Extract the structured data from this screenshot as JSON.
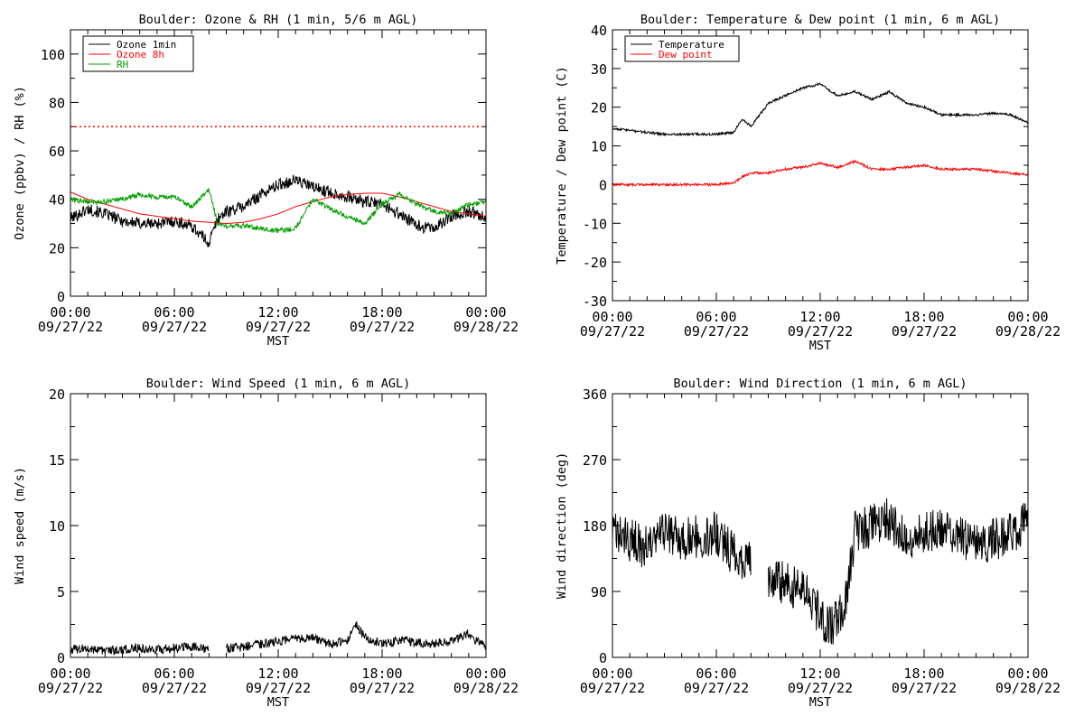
{
  "chart_data": [
    {
      "type": "line",
      "title": "Boulder: Ozone & RH (1 min, 5/6 m AGL)",
      "ylabel": "Ozone (ppbv) / RH (%)",
      "xlabel": "MST",
      "ylim": [
        0,
        110
      ],
      "yticks": [
        0,
        20,
        40,
        60,
        80,
        100
      ],
      "xticks": [
        "00:00",
        "06:00",
        "12:00",
        "18:00",
        "00:00"
      ],
      "xtick_dates": [
        "09/27/22",
        "09/27/22",
        "09/27/22",
        "09/27/22",
        "09/28/22"
      ],
      "xlim_hours": [
        0,
        24
      ],
      "x_hours": [
        0,
        1,
        2,
        3,
        4,
        5,
        6,
        7,
        8,
        8.5,
        9,
        10,
        11,
        12,
        13,
        14,
        15,
        16,
        17,
        18,
        19,
        20,
        21,
        22,
        23,
        24
      ],
      "reference_line": {
        "value": 70,
        "color": "#ff0000",
        "style": "dotted"
      },
      "legend_position": "top-left",
      "series": [
        {
          "name": "Ozone 1min",
          "color": "#000000",
          "jitter": 2.5,
          "values": [
            32,
            36,
            34,
            31,
            30,
            30,
            31,
            29,
            22,
            32,
            35,
            37,
            42,
            46,
            48,
            45,
            43,
            41,
            39,
            38,
            34,
            29,
            28,
            33,
            35,
            33
          ]
        },
        {
          "name": "Ozone 8h",
          "color": "#ff0000",
          "jitter": 0,
          "values": [
            43,
            40,
            38,
            36,
            34,
            33,
            32,
            31,
            30.5,
            30.2,
            30,
            30.5,
            32,
            34,
            37,
            39,
            41,
            42,
            42.5,
            42.5,
            41,
            39,
            37,
            35,
            34,
            33
          ]
        },
        {
          "name": "RH",
          "color": "#00a000",
          "jitter": 1,
          "values": [
            40,
            39,
            39,
            40,
            42,
            41,
            41,
            37,
            44,
            30,
            29,
            29,
            28,
            27,
            28,
            40,
            36,
            33,
            30,
            38,
            42,
            38,
            35,
            34,
            38,
            39
          ]
        }
      ]
    },
    {
      "type": "line",
      "title": "Boulder: Temperature & Dew point (1 min, 6 m AGL)",
      "ylabel": "Temperature / Dew point (C)",
      "xlabel": "MST",
      "ylim": [
        -30,
        40
      ],
      "yticks": [
        -30,
        -20,
        -10,
        0,
        10,
        20,
        30,
        40
      ],
      "xticks": [
        "00:00",
        "06:00",
        "12:00",
        "18:00",
        "00:00"
      ],
      "xtick_dates": [
        "09/27/22",
        "09/27/22",
        "09/27/22",
        "09/27/22",
        "09/28/22"
      ],
      "xlim_hours": [
        0,
        24
      ],
      "x_hours": [
        0,
        1,
        2,
        3,
        4,
        5,
        6,
        7,
        7.5,
        8,
        9,
        10,
        11,
        12,
        13,
        14,
        15,
        16,
        17,
        18,
        19,
        20,
        21,
        22,
        23,
        24
      ],
      "legend_position": "top-left",
      "series": [
        {
          "name": "Temperature",
          "color": "#000000",
          "jitter": 0.3,
          "values": [
            14.5,
            14,
            13.5,
            13,
            13,
            13,
            13,
            13.5,
            17,
            15,
            21,
            23,
            25,
            26,
            23,
            24,
            22,
            24,
            21,
            20,
            18,
            18,
            18,
            18.5,
            18,
            16
          ]
        },
        {
          "name": "Dew point",
          "color": "#ff0000",
          "jitter": 0.3,
          "values": [
            0,
            0,
            0,
            0,
            0,
            0,
            0,
            0.5,
            2,
            3,
            3,
            4,
            4.5,
            5.5,
            4.5,
            6,
            4,
            4,
            4.5,
            5,
            4,
            4,
            4,
            3.5,
            3,
            2.5
          ]
        }
      ]
    },
    {
      "type": "line",
      "title": "Boulder: Wind Speed (1 min, 6 m AGL)",
      "ylabel": "Wind speed (m/s)",
      "xlabel": "MST",
      "ylim": [
        0,
        20
      ],
      "yticks": [
        0,
        5,
        10,
        15,
        20
      ],
      "xticks": [
        "00:00",
        "06:00",
        "12:00",
        "18:00",
        "00:00"
      ],
      "xtick_dates": [
        "09/27/22",
        "09/27/22",
        "09/27/22",
        "09/27/22",
        "09/28/22"
      ],
      "xlim_hours": [
        0,
        24
      ],
      "x_hours": [
        0,
        1,
        2,
        3,
        4,
        5,
        6,
        7,
        8,
        8.2,
        9,
        10,
        11,
        12,
        13,
        14,
        15,
        16,
        16.5,
        17,
        18,
        19,
        20,
        21,
        22,
        23,
        24
      ],
      "series": [
        {
          "name": "",
          "color": "#000000",
          "jitter": 0.35,
          "values": [
            0.6,
            0.7,
            0.5,
            0.6,
            0.7,
            0.6,
            0.7,
            0.8,
            0.6,
            null,
            0.7,
            0.8,
            1.0,
            1.2,
            1.4,
            1.5,
            1.0,
            1.2,
            2.5,
            1.5,
            1.0,
            1.3,
            1.1,
            1.0,
            1.2,
            1.8,
            0.7
          ]
        }
      ]
    },
    {
      "type": "line",
      "title": "Boulder: Wind Direction (1 min, 6 m AGL)",
      "ylabel": "Wind direction (deg)",
      "xlabel": "MST",
      "ylim": [
        0,
        360
      ],
      "yticks": [
        0,
        90,
        180,
        270,
        360
      ],
      "xticks": [
        "00:00",
        "06:00",
        "12:00",
        "18:00",
        "00:00"
      ],
      "xtick_dates": [
        "09/27/22",
        "09/27/22",
        "09/27/22",
        "09/27/22",
        "09/28/22"
      ],
      "xlim_hours": [
        0,
        24
      ],
      "x_hours": [
        0,
        1,
        2,
        3,
        4,
        5,
        6,
        7,
        8,
        8.2,
        9,
        10,
        11,
        12,
        12.5,
        13,
        13.5,
        14,
        15,
        16,
        17,
        18,
        19,
        20,
        21,
        22,
        23,
        24
      ],
      "series": [
        {
          "name": "",
          "color": "#000000",
          "jitter": 30,
          "values": [
            170,
            160,
            150,
            170,
            160,
            165,
            170,
            140,
            130,
            null,
            110,
            100,
            90,
            60,
            40,
            50,
            80,
            170,
            180,
            190,
            160,
            170,
            180,
            165,
            150,
            160,
            170,
            185
          ]
        }
      ]
    }
  ]
}
